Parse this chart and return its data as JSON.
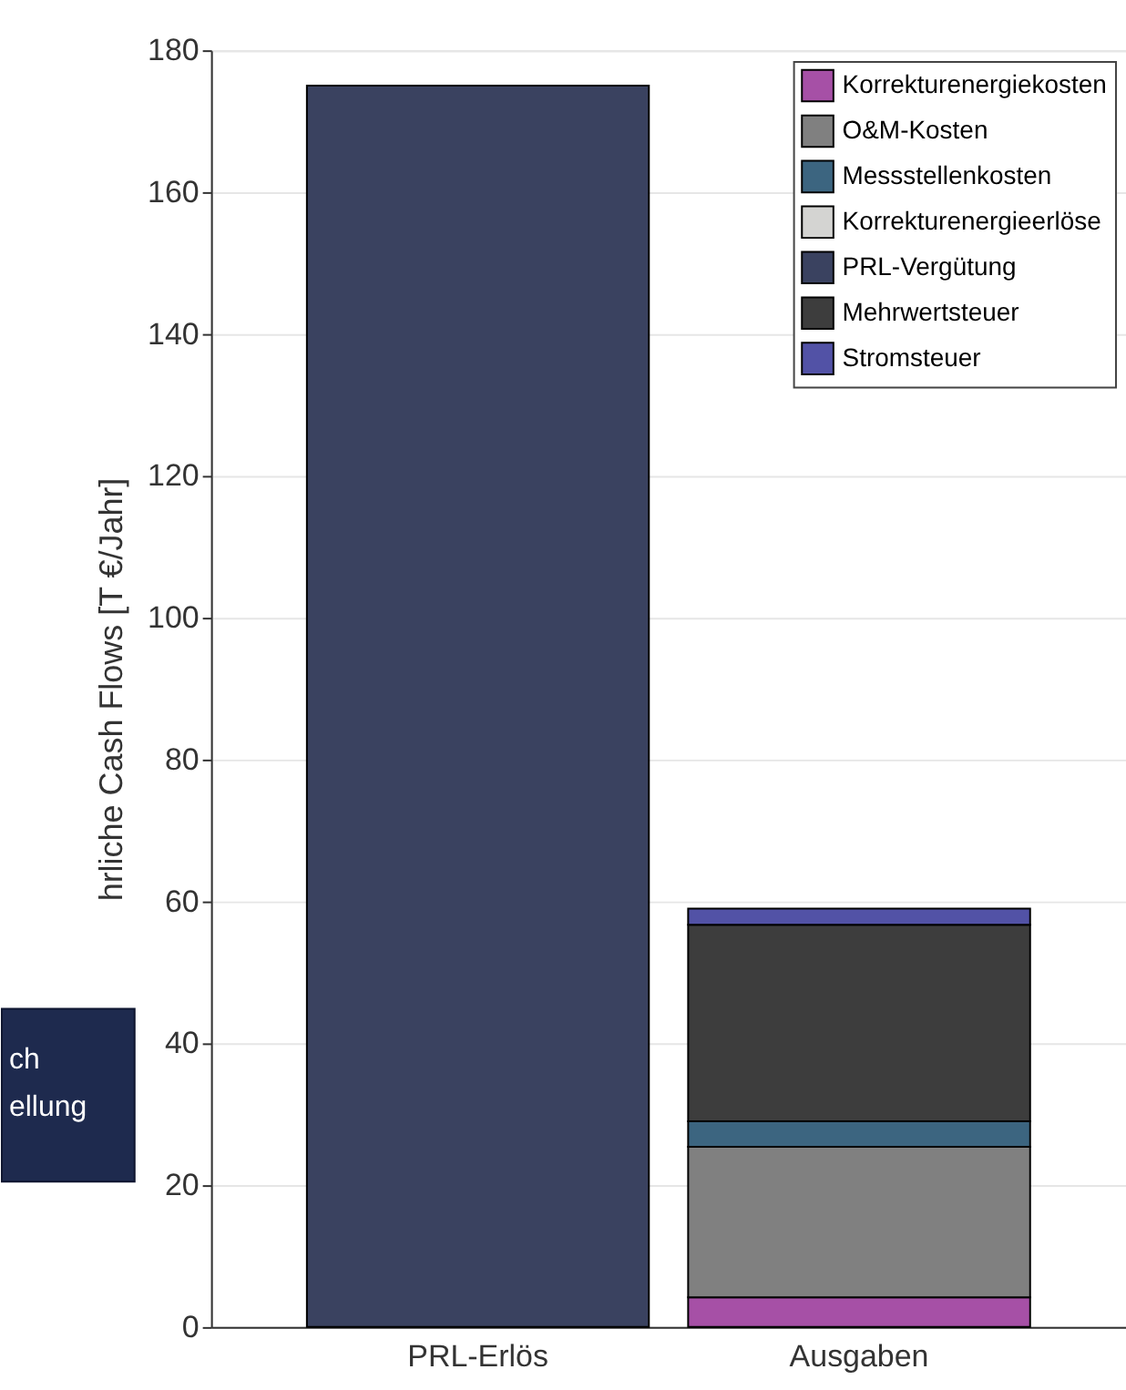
{
  "chart_data": {
    "type": "bar",
    "stacked": true,
    "categories": [
      "PRL-Erlös",
      "Ausgaben"
    ],
    "series": [
      {
        "name": "Korrekturenergiekosten",
        "color": "#a650a6",
        "values": [
          0,
          4.2
        ]
      },
      {
        "name": "O&M-Kosten",
        "color": "#808080",
        "values": [
          0,
          21.2
        ]
      },
      {
        "name": "Messstellenkosten",
        "color": "#3c6580",
        "values": [
          0,
          3.6
        ]
      },
      {
        "name": "Korrekturenergieerlöse",
        "color": "#d4d4d2",
        "values": [
          0,
          0
        ]
      },
      {
        "name": "PRL-Vergütung",
        "color": "#3a4260",
        "values": [
          175,
          0
        ]
      },
      {
        "name": "Mehrwertsteuer",
        "color": "#3d3d3d",
        "values": [
          0,
          27.7
        ]
      },
      {
        "name": "Stromsteuer",
        "color": "#5252a6",
        "values": [
          0,
          2.3
        ]
      }
    ],
    "ylabel": "hrliche Cash Flows [T €/Jahr]",
    "ylim": [
      0,
      180
    ],
    "yticks": [
      0,
      20,
      40,
      60,
      80,
      100,
      120,
      140,
      160,
      180
    ],
    "grid": "y",
    "legend": "top right",
    "annotations": [
      "ch\nellung"
    ]
  }
}
